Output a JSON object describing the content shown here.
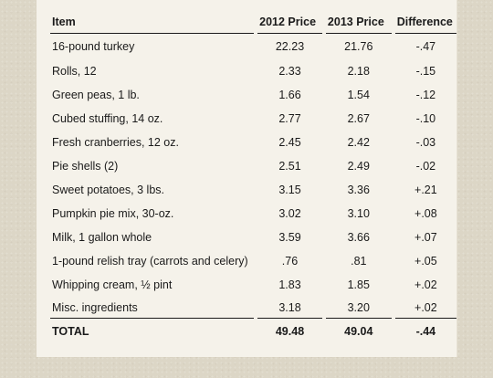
{
  "table": {
    "headers": [
      "Item",
      "2012 Price",
      "2013 Price",
      "Difference"
    ],
    "rows": [
      {
        "item": "16-pound turkey",
        "p2012": "22.23",
        "p2013": "21.76",
        "diff": "-.47"
      },
      {
        "item": "Rolls, 12",
        "p2012": "2.33",
        "p2013": "2.18",
        "diff": "-.15"
      },
      {
        "item": "Green peas, 1 lb.",
        "p2012": "1.66",
        "p2013": "1.54",
        "diff": "-.12"
      },
      {
        "item": "Cubed stuffing, 14 oz.",
        "p2012": "2.77",
        "p2013": "2.67",
        "diff": "-.10"
      },
      {
        "item": "Fresh cranberries, 12 oz.",
        "p2012": "2.45",
        "p2013": "2.42",
        "diff": "-.03"
      },
      {
        "item": "Pie shells (2)",
        "p2012": "2.51",
        "p2013": "2.49",
        "diff": "-.02"
      },
      {
        "item": "Sweet potatoes, 3 lbs.",
        "p2012": "3.15",
        "p2013": "3.36",
        "diff": "+.21"
      },
      {
        "item": "Pumpkin pie mix, 30-oz.",
        "p2012": "3.02",
        "p2013": "3.10",
        "diff": "+.08"
      },
      {
        "item": "Milk, 1 gallon whole",
        "p2012": "3.59",
        "p2013": "3.66",
        "diff": "+.07"
      },
      {
        "item": "1-pound relish tray (carrots and celery)",
        "p2012": ".76",
        "p2013": ".81",
        "diff": "+.05"
      },
      {
        "item": "Whipping cream, ½ pint",
        "p2012": "1.83",
        "p2013": "1.85",
        "diff": "+.02"
      },
      {
        "item": "Misc. ingredients",
        "p2012": "3.18",
        "p2013": "3.20",
        "diff": "+.02"
      }
    ],
    "total": {
      "item": "TOTAL",
      "p2012": "49.48",
      "p2013": "49.04",
      "diff": "-.44"
    }
  }
}
